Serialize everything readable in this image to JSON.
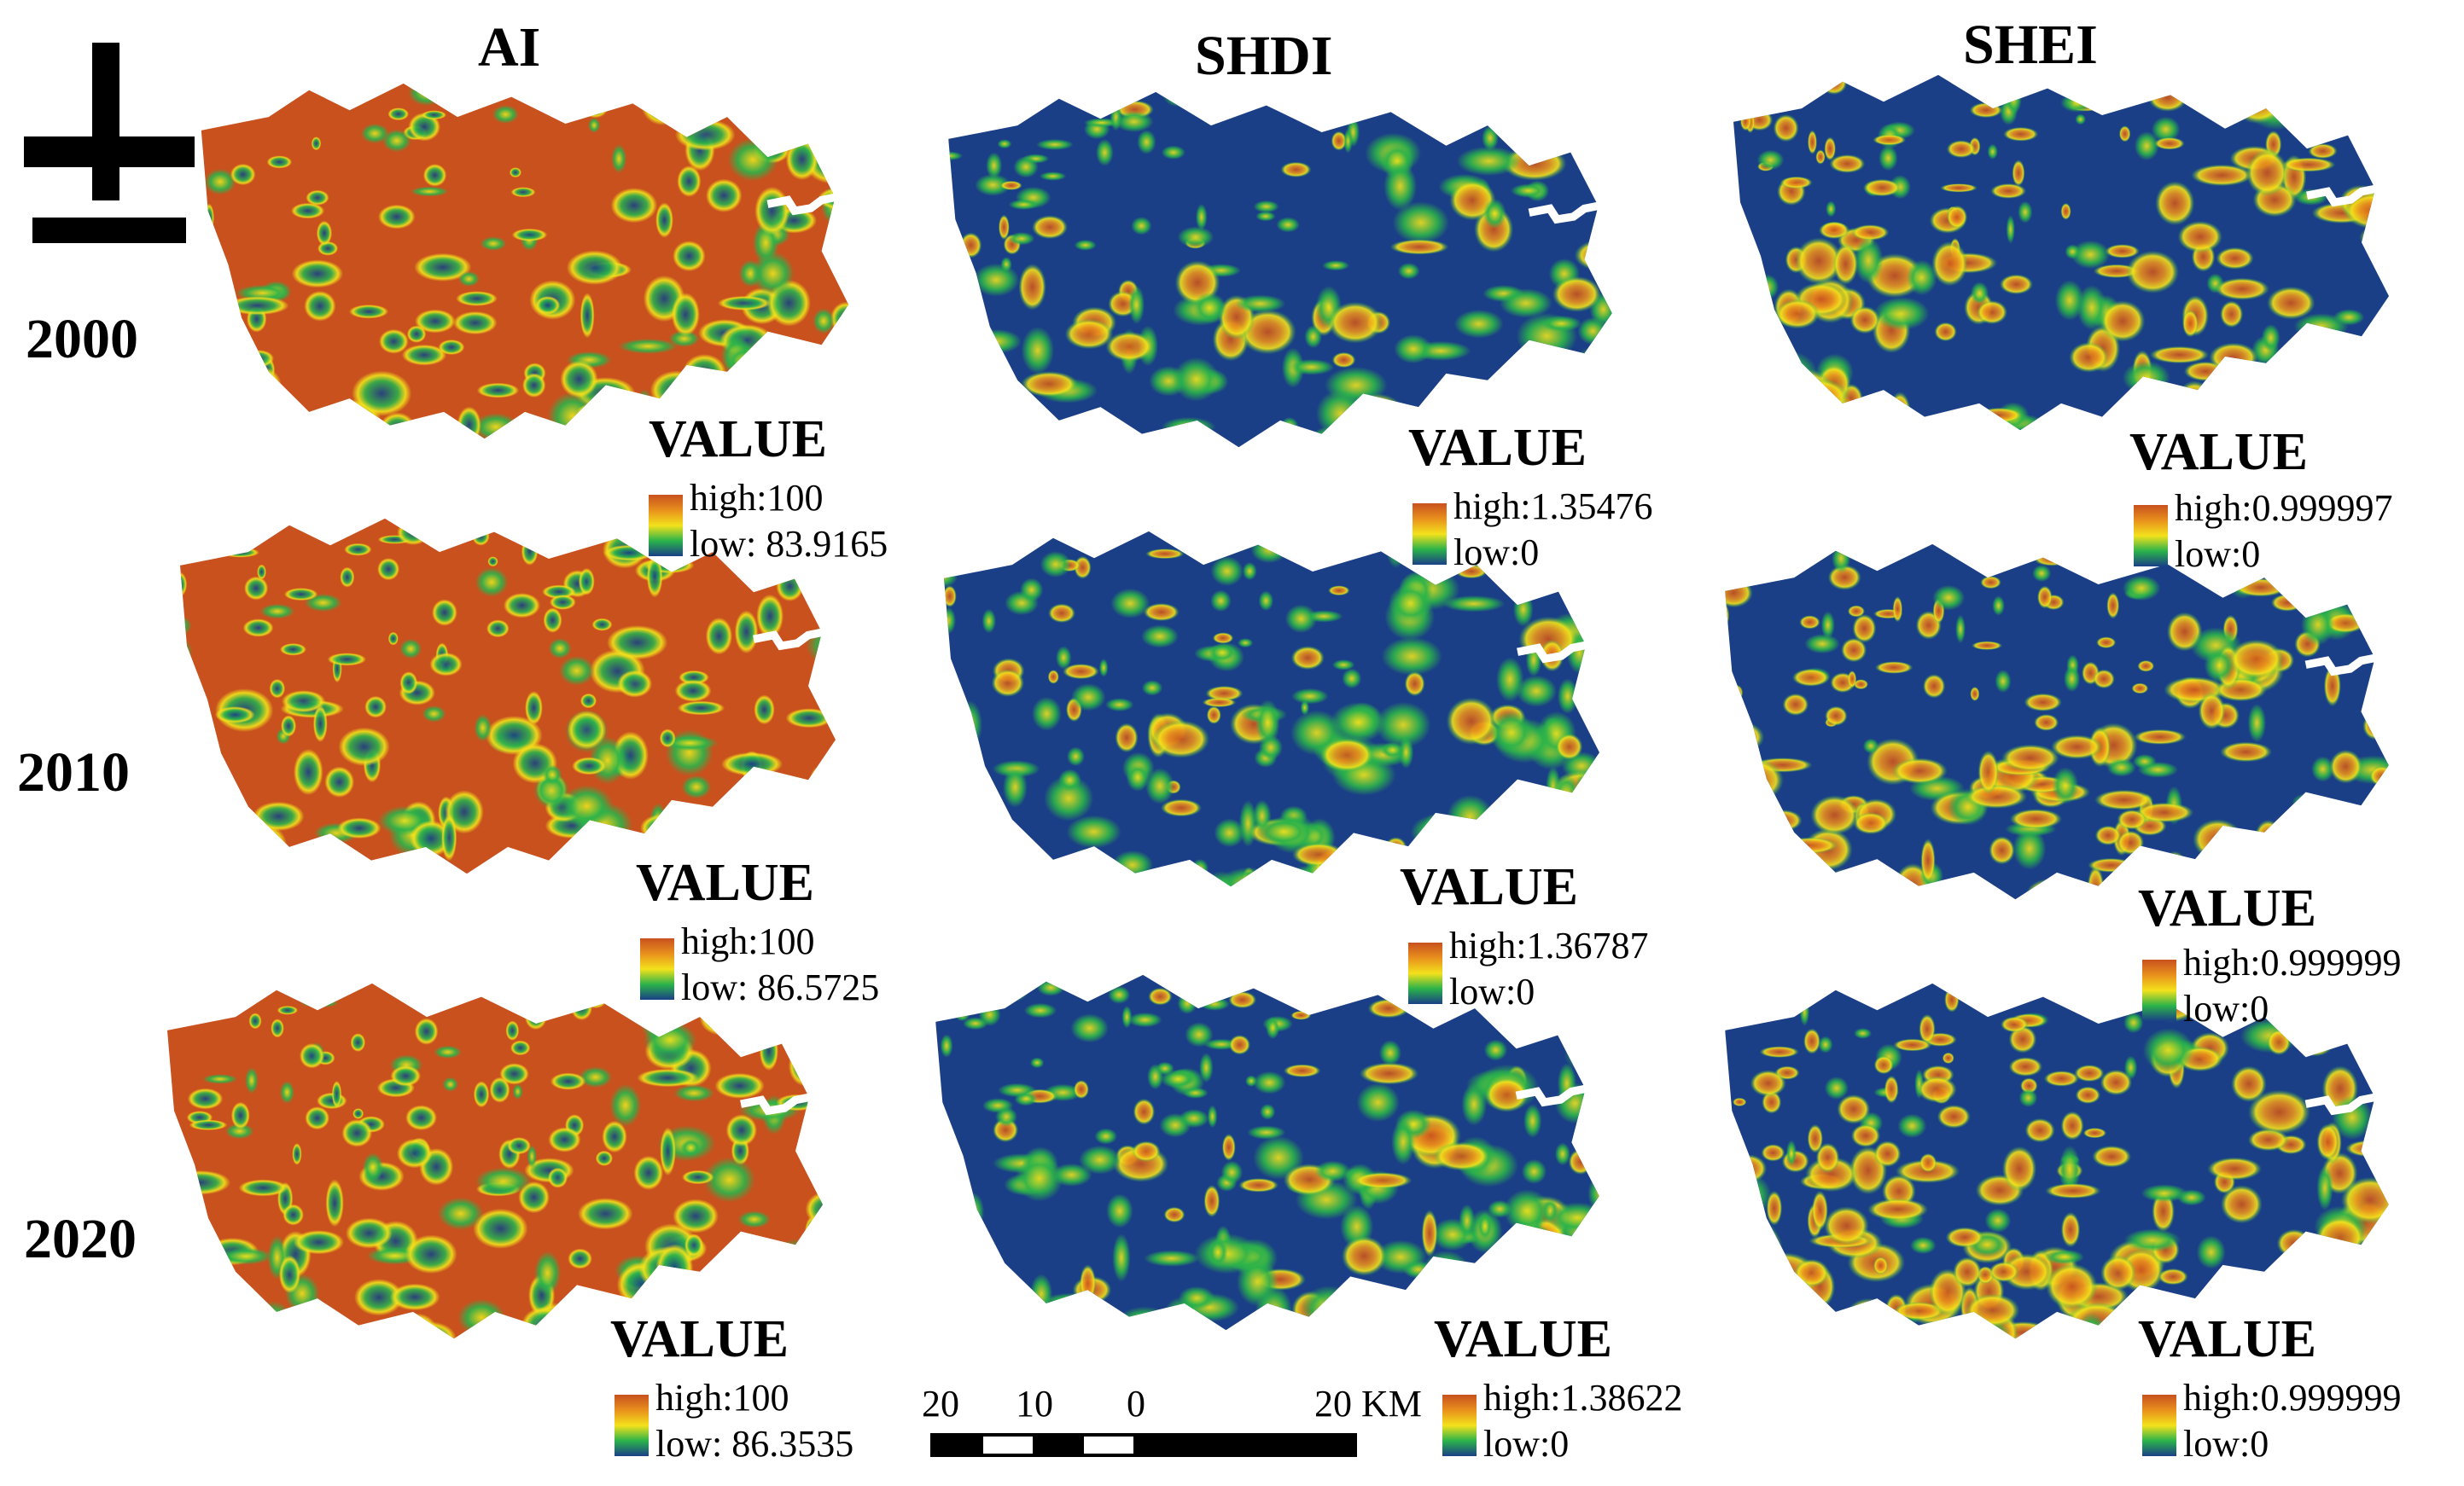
{
  "columns": [
    "AI",
    "SHDI",
    "SHEI"
  ],
  "rows": [
    "2000",
    "2010",
    "2020"
  ],
  "colors": {
    "high": "#c8511e",
    "mid_high": "#e8901d",
    "mid": "#f3e11b",
    "mid_low": "#2bb34a",
    "low": "#1a3f86"
  },
  "legends": {
    "ai_2000": {
      "title": "VALUE",
      "high": "high:100",
      "low": "low: 83.9165"
    },
    "shdi_2000": {
      "title": "VALUE",
      "high": "high:1.35476",
      "low": "low:0"
    },
    "shei_2000": {
      "title": "VALUE",
      "high": "high:0.999997",
      "low": "low:0"
    },
    "ai_2010": {
      "title": "VALUE",
      "high": "high:100",
      "low": "low: 86.5725"
    },
    "shdi_2010": {
      "title": "VALUE",
      "high": "high:1.36787",
      "low": "low:0"
    },
    "shei_2010": {
      "title": "VALUE",
      "high": "high:0.999999",
      "low": "low:0"
    },
    "ai_2020": {
      "title": "VALUE",
      "high": "high:100",
      "low": "low: 86.3535"
    },
    "shdi_2020": {
      "title": "VALUE",
      "high": "high:1.38622",
      "low": "low:0"
    },
    "shei_2020": {
      "title": "VALUE",
      "high": "high:0.999999",
      "low": "low:0"
    }
  },
  "scalebar": {
    "labels": [
      "20",
      "10",
      "0",
      "20 KM"
    ]
  },
  "north_arrow_icon": "north-arrow-icon"
}
